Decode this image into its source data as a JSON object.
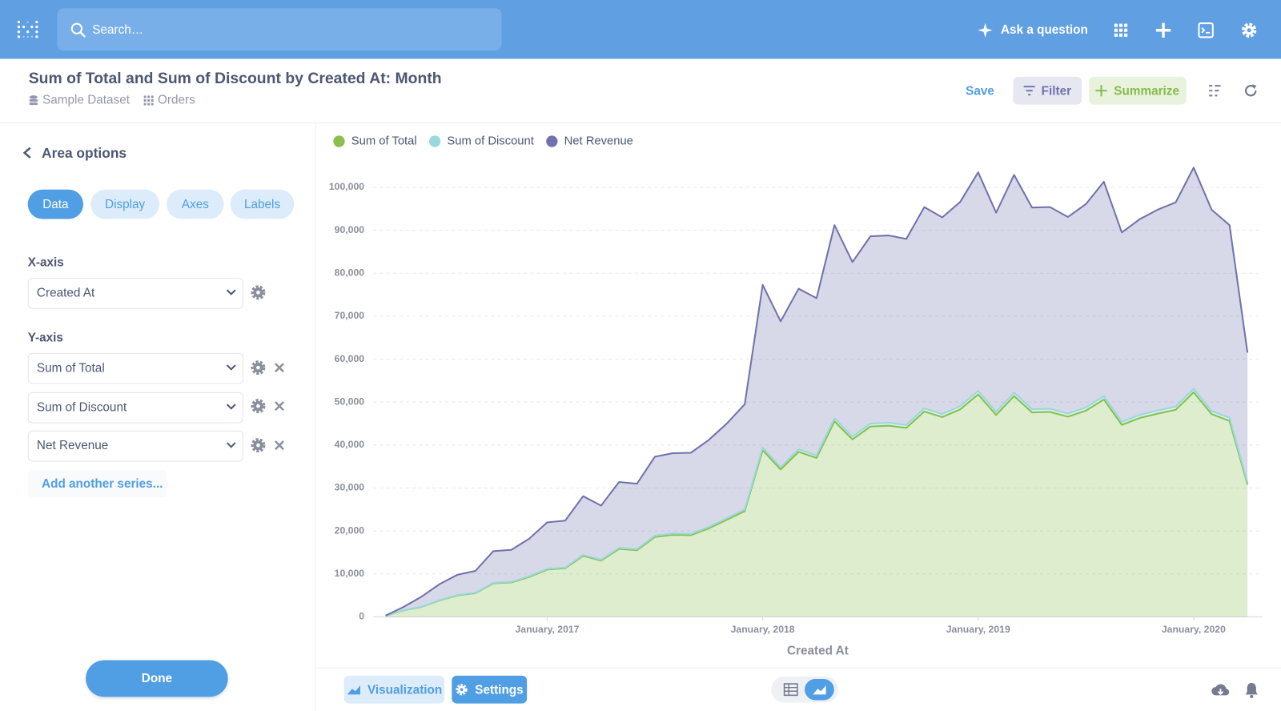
{
  "topbar": {
    "search_placeholder": "Search…",
    "ask": "Ask a question"
  },
  "header": {
    "title": "Sum of Total and Sum of Discount by Created At: Month",
    "dataset": "Sample Dataset",
    "table": "Orders",
    "save": "Save",
    "filter": "Filter",
    "summarize": "Summarize"
  },
  "sidebar": {
    "title": "Area options",
    "tabs": [
      "Data",
      "Display",
      "Axes",
      "Labels"
    ],
    "x_axis_label": "X-axis",
    "x_axis_field": "Created At",
    "y_axis_label": "Y-axis",
    "y_axis_fields": [
      "Sum of Total",
      "Sum of Discount",
      "Net Revenue"
    ],
    "add_series": "Add another series...",
    "done": "Done"
  },
  "footer": {
    "visualization": "Visualization",
    "settings": "Settings"
  },
  "chart_data": {
    "type": "area",
    "stacked": true,
    "legend": "top-left",
    "grid": true,
    "xlabel": "Created At",
    "x": [
      "2016-04",
      "2016-05",
      "2016-06",
      "2016-07",
      "2016-08",
      "2016-09",
      "2016-10",
      "2016-11",
      "2016-12",
      "2017-01",
      "2017-02",
      "2017-03",
      "2017-04",
      "2017-05",
      "2017-06",
      "2017-07",
      "2017-08",
      "2017-09",
      "2017-10",
      "2017-11",
      "2017-12",
      "2018-01",
      "2018-02",
      "2018-03",
      "2018-04",
      "2018-05",
      "2018-06",
      "2018-07",
      "2018-08",
      "2018-09",
      "2018-10",
      "2018-11",
      "2018-12",
      "2019-01",
      "2019-02",
      "2019-03",
      "2019-04",
      "2019-05",
      "2019-06",
      "2019-07",
      "2019-08",
      "2019-09",
      "2019-10",
      "2019-11",
      "2019-12",
      "2020-01",
      "2020-02",
      "2020-03",
      "2020-04"
    ],
    "xlim": [
      "2016-04",
      "2020-04"
    ],
    "xticks": [
      {
        "value": "2017-01",
        "label": "January, 2017"
      },
      {
        "value": "2018-01",
        "label": "January, 2018"
      },
      {
        "value": "2019-01",
        "label": "January, 2019"
      },
      {
        "value": "2020-01",
        "label": "January, 2020"
      }
    ],
    "ylim": [
      0,
      105000
    ],
    "yticks": [
      0,
      {
        "value": 10000,
        "label": "10,000"
      },
      {
        "value": 20000,
        "label": "20,000"
      },
      {
        "value": 30000,
        "label": "30,000"
      },
      {
        "value": 40000,
        "label": "40,000"
      },
      {
        "value": 50000,
        "label": "50,000"
      },
      {
        "value": 60000,
        "label": "60,000"
      },
      {
        "value": 70000,
        "label": "70,000"
      },
      {
        "value": 80000,
        "label": "80,000"
      },
      {
        "value": 90000,
        "label": "90,000"
      },
      {
        "value": 100000,
        "label": "100,000"
      }
    ],
    "series": [
      {
        "name": "Sum of Total",
        "color": "#88bf4d",
        "values": [
          200,
          1500,
          2300,
          3800,
          5000,
          5500,
          7800,
          8000,
          9300,
          11000,
          11300,
          14200,
          13100,
          15800,
          15500,
          18600,
          19100,
          19000,
          20600,
          22600,
          24600,
          38800,
          34300,
          38400,
          37000,
          45500,
          41300,
          44300,
          44500,
          44000,
          47800,
          46500,
          48300,
          51800,
          47000,
          51400,
          47600,
          47700,
          46600,
          48000,
          50600,
          44700,
          46300,
          47300,
          48200,
          52300,
          47200,
          45600,
          30800
        ]
      },
      {
        "name": "Sum of Discount",
        "color": "#98d9d9",
        "values": [
          10,
          30,
          40,
          60,
          80,
          90,
          120,
          130,
          150,
          170,
          180,
          220,
          200,
          250,
          240,
          290,
          300,
          300,
          320,
          350,
          380,
          600,
          530,
          600,
          580,
          700,
          640,
          690,
          690,
          680,
          740,
          720,
          750,
          800,
          730,
          800,
          740,
          740,
          720,
          740,
          790,
          690,
          720,
          730,
          750,
          810,
          730,
          710,
          480
        ]
      },
      {
        "name": "Net Revenue",
        "color": "#7172ad",
        "values": [
          90,
          770,
          2360,
          3740,
          4720,
          5110,
          7380,
          7470,
          8750,
          10830,
          10920,
          13680,
          12600,
          15350,
          15260,
          18410,
          18700,
          18900,
          20280,
          22050,
          24520,
          37900,
          33970,
          37400,
          36620,
          45000,
          40660,
          43610,
          43610,
          43320,
          46860,
          45780,
          47550,
          50900,
          46370,
          50700,
          46960,
          46960,
          45780,
          47360,
          49910,
          44110,
          45580,
          46770,
          47550,
          51490,
          46870,
          44890,
          30220
        ]
      }
    ]
  }
}
